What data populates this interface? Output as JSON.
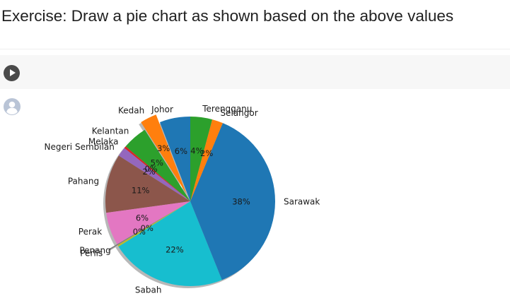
{
  "exercise": {
    "heading": "Exercise: Draw a pie chart as shown based on the above values"
  },
  "code_cell": {
    "run_icon": "play-icon"
  },
  "output_cell": {
    "avatar_icon": "user-avatar-icon"
  },
  "chart_data": {
    "type": "pie",
    "title": "",
    "categories": [
      "Johor",
      "Kedah",
      "Kelantan",
      "Melaka",
      "Negeri Sembilan",
      "Pahang",
      "Perak",
      "Perlis",
      "Penang",
      "Sabah",
      "Sarawak",
      "Selangor",
      "Terengganu"
    ],
    "values": [
      5.88,
      3.2,
      4.8,
      0.4,
      1.8,
      11.3,
      6.3,
      0.25,
      0.3,
      22.3,
      37.95,
      2.1,
      4.2
    ],
    "percent_labels": [
      "6%",
      "3%",
      "5%",
      "0%",
      "2%",
      "11%",
      "6%",
      "0%",
      "0%",
      "22%",
      "38%",
      "2%",
      "4%"
    ],
    "colors": [
      "#1f77b4",
      "#ff7f0e",
      "#2ca02c",
      "#d62728",
      "#9467bd",
      "#8c564b",
      "#e377c2",
      "#7f7f7f",
      "#bcbd22",
      "#17becf",
      "#1f77b4",
      "#ff7f0e",
      "#2ca02c"
    ],
    "exploded": [
      "Kedah",
      "Perlis"
    ],
    "shadow": true,
    "start_angle_deg": 90,
    "direction": "counterclockwise"
  }
}
